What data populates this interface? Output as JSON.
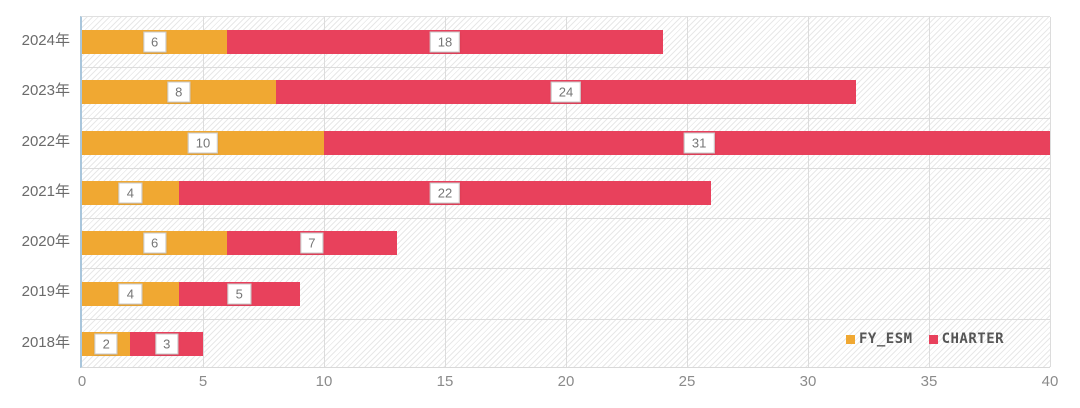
{
  "chart_data": {
    "type": "bar",
    "orientation": "horizontal",
    "stacked": true,
    "title": "",
    "xlabel": "",
    "ylabel": "",
    "categories": [
      "2024年",
      "2023年",
      "2022年",
      "2021年",
      "2020年",
      "2019年",
      "2018年"
    ],
    "series": [
      {
        "name": "FY_ESM",
        "color": "#F0A832",
        "values": [
          6,
          8,
          10,
          4,
          6,
          4,
          2
        ]
      },
      {
        "name": "CHARTER",
        "color": "#E8415C",
        "values": [
          18,
          24,
          31,
          22,
          7,
          5,
          3
        ]
      }
    ],
    "totals": [
      24,
      32,
      41,
      26,
      13,
      9,
      5
    ],
    "xlim": [
      0,
      40
    ],
    "xticks": [
      0,
      5,
      10,
      15,
      20,
      25,
      30,
      35,
      40
    ],
    "grid": true,
    "background_pattern": "diagonal-hatch",
    "legend_position": "bottom-right",
    "axis_line_color": "#A9C6DC",
    "bars_clipped_at_xmax": true
  }
}
